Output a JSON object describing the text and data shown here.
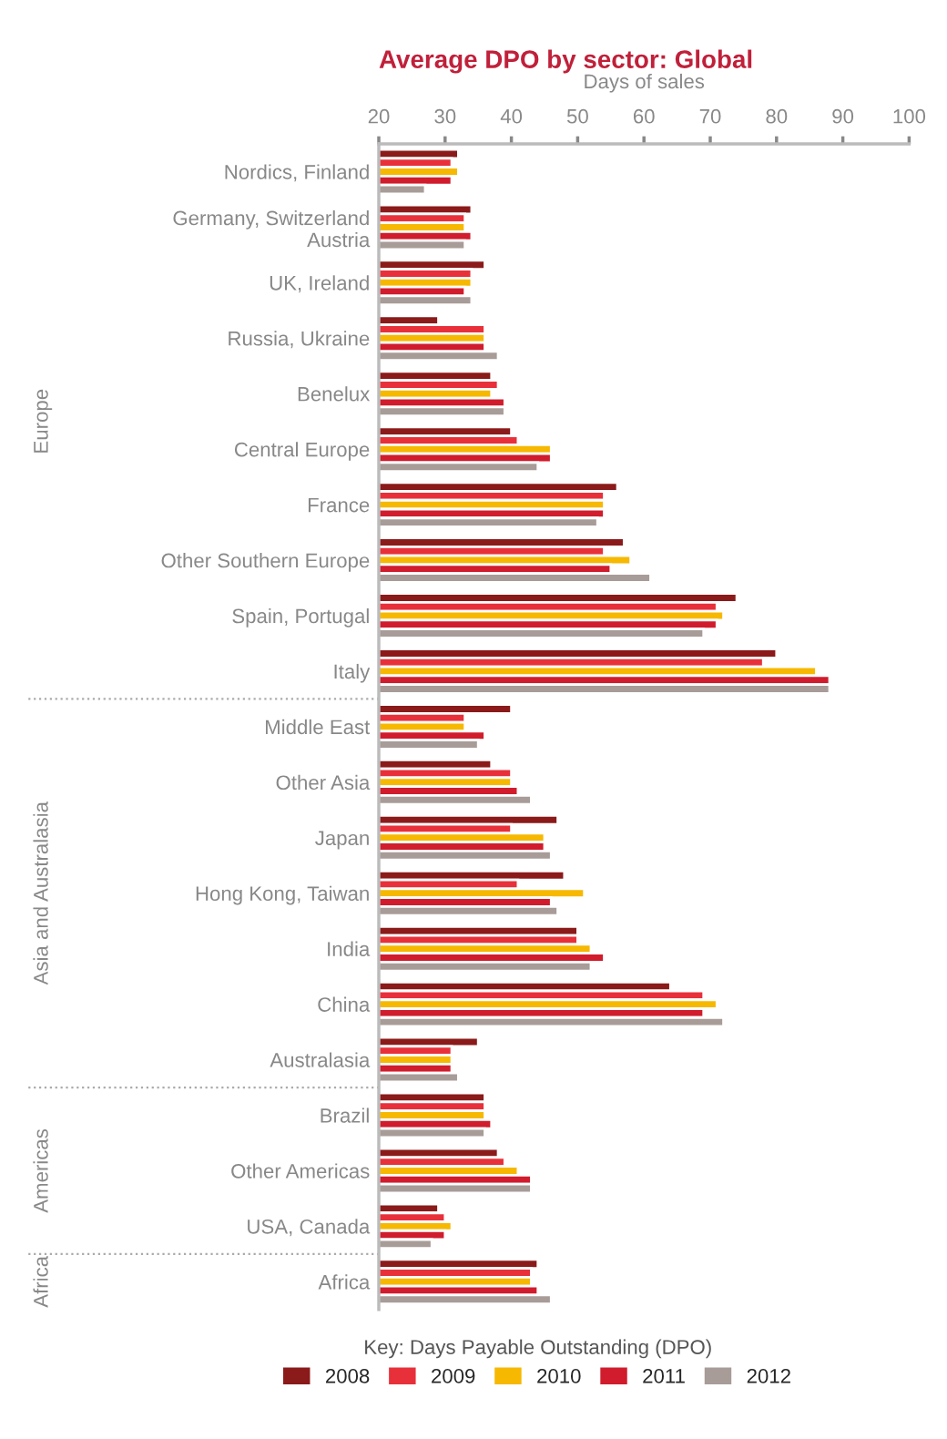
{
  "chart_data": {
    "type": "bar",
    "orientation": "horizontal",
    "title": "Average DPO by sector: Global",
    "xlabel": "Days of sales",
    "legend_title": "Key: Days Payable Outstanding (DPO)",
    "legend": "bottom",
    "categories": [
      "Nordics, Finland",
      "Germany, Switzerland\nAustria",
      "UK, Ireland",
      "Russia, Ukraine",
      "Benelux",
      "Central Europe",
      "France",
      "Other Southern Europe",
      "Spain, Portugal",
      "Italy",
      "Middle East",
      "Other Asia",
      "Japan",
      "Hong Kong, Taiwan",
      "India",
      "China",
      "Australasia",
      "Brazil",
      "Other Americas",
      "USA, Canada",
      "Africa"
    ],
    "series": [
      {
        "name": "2008",
        "color": "#8b1a1a",
        "values": [
          32,
          34,
          36,
          29,
          37,
          40,
          56,
          57,
          74,
          80,
          40,
          37,
          47,
          48,
          50,
          64,
          35,
          36,
          38,
          29,
          44
        ]
      },
      {
        "name": "2009",
        "color": "#e8303a",
        "values": [
          31,
          33,
          34,
          36,
          38,
          41,
          54,
          54,
          71,
          78,
          33,
          40,
          40,
          41,
          50,
          69,
          31,
          36,
          39,
          30,
          43
        ]
      },
      {
        "name": "2010",
        "color": "#f6b800",
        "values": [
          32,
          33,
          34,
          36,
          37,
          46,
          54,
          58,
          72,
          86,
          33,
          40,
          45,
          51,
          52,
          71,
          31,
          36,
          41,
          31,
          43
        ]
      },
      {
        "name": "2011",
        "color": "#d01c2c",
        "values": [
          31,
          34,
          33,
          36,
          39,
          46,
          54,
          55,
          71,
          88,
          36,
          41,
          45,
          46,
          54,
          69,
          31,
          37,
          43,
          30,
          44
        ]
      },
      {
        "name": "2012",
        "color": "#a89c98",
        "values": [
          27,
          33,
          34,
          38,
          39,
          44,
          53,
          61,
          69,
          88,
          35,
          43,
          46,
          47,
          52,
          72,
          32,
          36,
          43,
          28,
          46
        ]
      }
    ],
    "xlim": [
      20,
      100
    ],
    "xticks": [
      20,
      30,
      40,
      50,
      60,
      70,
      80,
      90,
      100
    ],
    "grid": false,
    "annotations": [
      "Europe",
      "Asia and Australasia",
      "Americas",
      "Africa"
    ]
  }
}
